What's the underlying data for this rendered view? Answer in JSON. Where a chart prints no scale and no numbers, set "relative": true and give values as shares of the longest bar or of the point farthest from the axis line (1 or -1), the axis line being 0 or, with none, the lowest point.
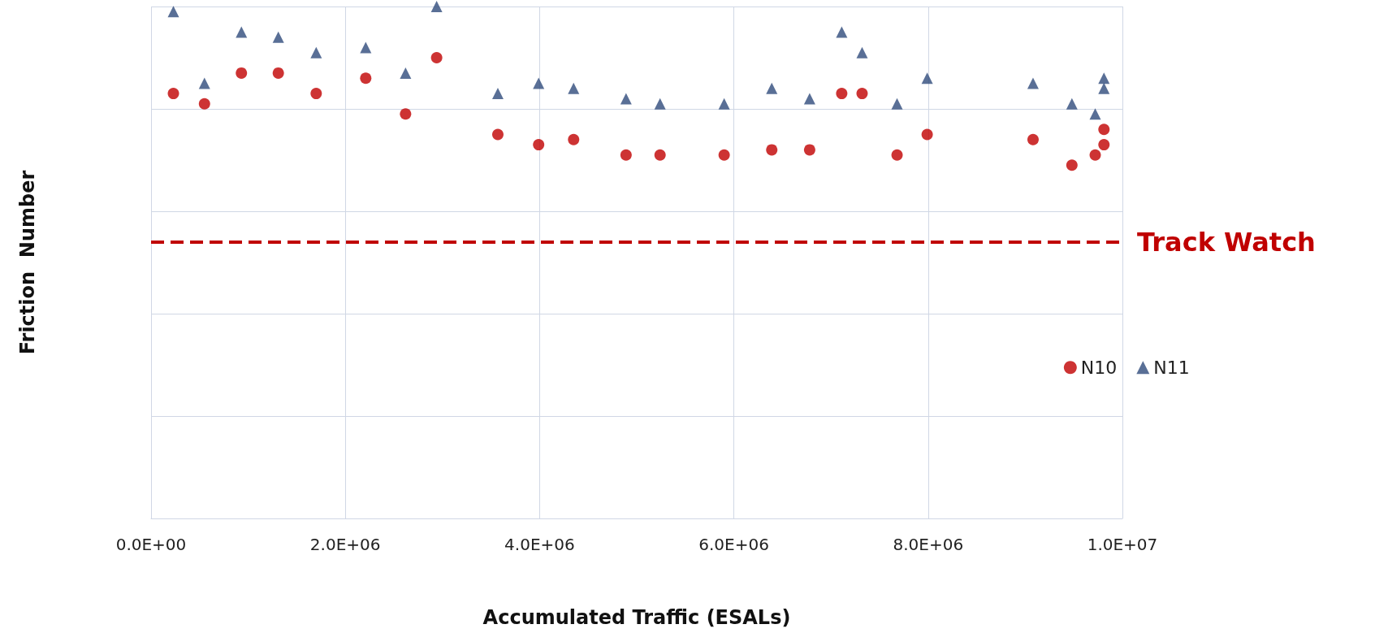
{
  "chart_data": {
    "type": "scatter",
    "xlabel": "Accumulated Traffic (ESALs)",
    "ylabel": "Friction  Number",
    "relative": true,
    "grid": true,
    "legend": "right",
    "xlim": [
      0,
      10000000
    ],
    "xticks": [
      {
        "value": 0,
        "label": "0.0E+00"
      },
      {
        "value": 2000000,
        "label": "2.0E+06"
      },
      {
        "value": 4000000,
        "label": "4.0E+06"
      },
      {
        "value": 6000000,
        "label": "6.0E+06"
      },
      {
        "value": 8000000,
        "label": "8.0E+06"
      },
      {
        "value": 10000000,
        "label": "1.0E+07"
      }
    ],
    "series": [
      {
        "name": "N10",
        "color": "#c00000",
        "marker": "circle",
        "x": [
          230000,
          550000,
          930000,
          1310000,
          1700000,
          2210000,
          2620000,
          2940000,
          3570000,
          3990000,
          4350000,
          4890000,
          5240000,
          5900000,
          6390000,
          6780000,
          7110000,
          7320000,
          7680000,
          7990000,
          9080000,
          9480000,
          9720000,
          9810000,
          9810000
        ],
        "values": [
          0.83,
          0.81,
          0.87,
          0.87,
          0.83,
          0.86,
          0.79,
          0.9,
          0.75,
          0.73,
          0.74,
          0.71,
          0.71,
          0.71,
          0.72,
          0.72,
          0.83,
          0.83,
          0.71,
          0.75,
          0.74,
          0.69,
          0.71,
          0.73,
          0.76
        ]
      },
      {
        "name": "N11",
        "color": "#2f4b7c",
        "marker": "triangle",
        "x": [
          230000,
          550000,
          930000,
          1310000,
          1700000,
          2210000,
          2620000,
          2940000,
          3570000,
          3990000,
          4350000,
          4890000,
          5240000,
          5900000,
          6390000,
          6780000,
          7110000,
          7320000,
          7680000,
          7990000,
          9080000,
          9480000,
          9720000,
          9810000,
          9810000
        ],
        "values": [
          0.99,
          0.85,
          0.95,
          0.94,
          0.91,
          0.92,
          0.87,
          1,
          0.83,
          0.85,
          0.84,
          0.82,
          0.81,
          0.81,
          0.84,
          0.82,
          0.95,
          0.91,
          0.81,
          0.86,
          0.85,
          0.81,
          0.79,
          0.84,
          0.86
        ]
      }
    ],
    "ref_lines": [
      {
        "axis": "y",
        "value": 0.54,
        "label": "Track Watch",
        "color": "#c00000",
        "line_style": "dashed"
      }
    ]
  }
}
